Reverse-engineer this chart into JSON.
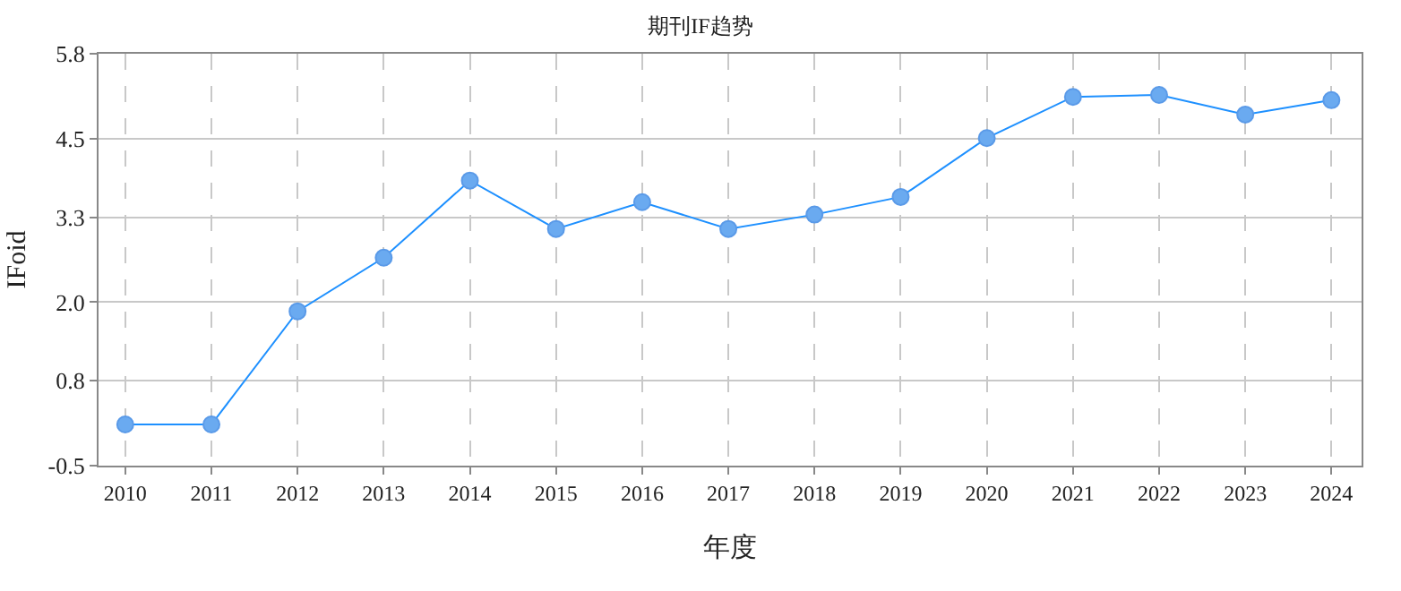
{
  "chart_data": {
    "type": "line",
    "title": "期刊IF趋势",
    "xlabel": "年度",
    "ylabel": "IFoid",
    "x": [
      2010,
      2011,
      2012,
      2013,
      2014,
      2015,
      2016,
      2017,
      2018,
      2019,
      2020,
      2021,
      2022,
      2023,
      2024
    ],
    "series": [
      {
        "color": "#1e90ff",
        "values": [
          0.13,
          0.13,
          1.86,
          2.68,
          3.86,
          3.12,
          3.53,
          3.12,
          3.34,
          3.61,
          4.51,
          5.14,
          5.17,
          4.87,
          5.09
        ]
      }
    ],
    "xlim": [
      2009.69,
      2024.35
    ],
    "xticks": [
      2010,
      2011,
      2012,
      2013,
      2014,
      2015,
      2016,
      2017,
      2018,
      2019,
      2020,
      2021,
      2022,
      2023,
      2024
    ],
    "ylim": [
      -0.5,
      5.8
    ],
    "yticks": [
      -0.5,
      0.8,
      {
        "value": 2,
        "label": "2.0"
      },
      3.3,
      4.5,
      5.8
    ],
    "grid": true,
    "marker": "circle",
    "line_style": "solid"
  }
}
